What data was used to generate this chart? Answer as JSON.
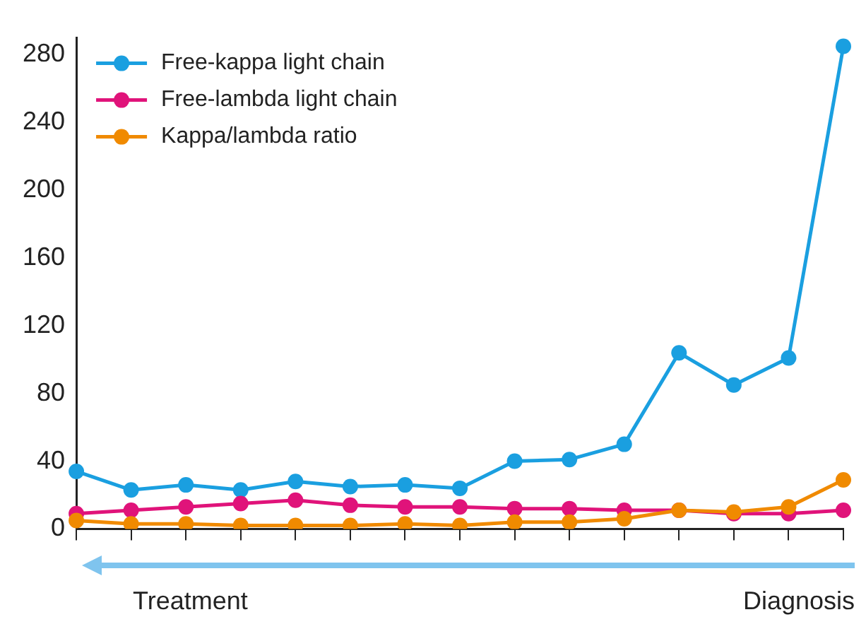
{
  "chart_data": {
    "type": "line",
    "categories": [
      null,
      null,
      null,
      null,
      null,
      null,
      null,
      null,
      null,
      null,
      null,
      null,
      null,
      null,
      null
    ],
    "series": [
      {
        "name": "Free-kappa light chain",
        "color": "#1a9fe0",
        "values": [
          34,
          23,
          26,
          23,
          28,
          25,
          26,
          24,
          40,
          41,
          50,
          104,
          85,
          101,
          285
        ]
      },
      {
        "name": "Free-lambda light chain",
        "color": "#e0137a",
        "values": [
          9,
          11,
          13,
          15,
          17,
          14,
          13,
          13,
          12,
          12,
          11,
          11,
          9,
          9,
          11
        ]
      },
      {
        "name": "Kappa/lambda ratio",
        "color": "#f08a00",
        "values": [
          5,
          3,
          3,
          2,
          2,
          2,
          3,
          2,
          4,
          4,
          6,
          11,
          10,
          13,
          29
        ]
      }
    ],
    "ylim": [
      0,
      290
    ],
    "yticks": [
      0,
      40,
      80,
      120,
      160,
      200,
      240,
      280
    ],
    "grid": false,
    "legend": "top left",
    "marker": "circle",
    "line_style": "solid",
    "annotations": [
      "Treatment",
      "Diagnosis"
    ]
  }
}
